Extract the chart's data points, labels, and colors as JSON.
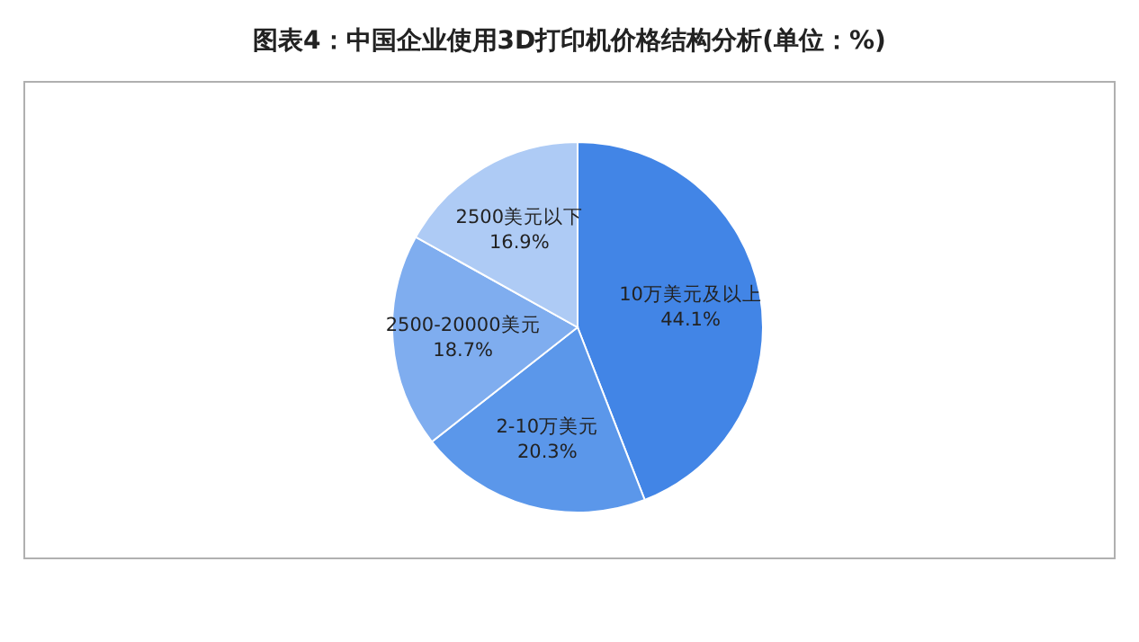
{
  "chart_data": {
    "type": "pie",
    "title": "图表4：中国企业使用3D打印机价格结构分析(单位：%)",
    "categories": [
      "10万美元及以上",
      "2-10万美元",
      "2500-20000美元",
      "2500美元以下"
    ],
    "values": [
      44.1,
      20.3,
      18.7,
      16.9
    ],
    "value_labels": [
      "44.1%",
      "20.3%",
      "18.7%",
      "16.9%"
    ],
    "colors": [
      "#4285e6",
      "#5b97ea",
      "#7fadef",
      "#aecbf5"
    ],
    "legend": false
  }
}
